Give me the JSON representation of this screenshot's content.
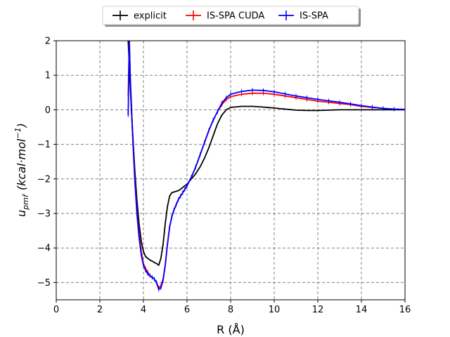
{
  "chart_data": {
    "type": "line",
    "title": "",
    "xlabel": "R (Å)",
    "ylabel": "u_pmf (kcal·mol⁻¹)",
    "ylabel_parts": {
      "main": "u",
      "sub": "pmf",
      "paren": "(kcal·mol",
      "sup": "−1",
      "close": ")"
    },
    "xlim": [
      0,
      16
    ],
    "ylim": [
      -5.5,
      2
    ],
    "xticks": [
      0,
      2,
      4,
      6,
      8,
      10,
      12,
      14,
      16
    ],
    "yticks": [
      -5,
      -4,
      -3,
      -2,
      -1,
      0,
      1,
      2
    ],
    "xtick_labels": [
      "0",
      "2",
      "4",
      "6",
      "8",
      "10",
      "12",
      "14",
      "16"
    ],
    "ytick_labels": [
      "−5",
      "−4",
      "−3",
      "−2",
      "−1",
      "0",
      "1",
      "2"
    ],
    "grid": true,
    "legend_position": "top-center",
    "series": [
      {
        "name": "explicit",
        "color": "#000000",
        "x": [
          3.3,
          3.4,
          3.5,
          3.6,
          3.7,
          3.8,
          3.9,
          4.0,
          4.1,
          4.2,
          4.3,
          4.4,
          4.5,
          4.6,
          4.7,
          4.8,
          4.9,
          5.0,
          5.1,
          5.2,
          5.3,
          5.4,
          5.5,
          5.6,
          5.7,
          5.8,
          6.0,
          6.2,
          6.4,
          6.6,
          6.8,
          7.0,
          7.2,
          7.4,
          7.6,
          7.8,
          8.0,
          8.5,
          9.0,
          9.5,
          10.0,
          10.5,
          11.0,
          11.5,
          12.0,
          12.5,
          13.0,
          13.5,
          14.0,
          14.5,
          15.0,
          15.5,
          16.0
        ],
        "y": [
          2.0,
          0.6,
          -0.6,
          -1.7,
          -2.6,
          -3.3,
          -3.8,
          -4.1,
          -4.25,
          -4.3,
          -4.35,
          -4.38,
          -4.42,
          -4.45,
          -4.5,
          -4.3,
          -3.9,
          -3.3,
          -2.8,
          -2.5,
          -2.4,
          -2.38,
          -2.36,
          -2.34,
          -2.3,
          -2.25,
          -2.15,
          -2.0,
          -1.85,
          -1.65,
          -1.4,
          -1.1,
          -0.75,
          -0.4,
          -0.15,
          0.0,
          0.07,
          0.1,
          0.1,
          0.08,
          0.05,
          0.02,
          -0.01,
          -0.02,
          -0.02,
          -0.01,
          0.0,
          0.0,
          0.0,
          0.0,
          0.0,
          0.0,
          0.0
        ]
      },
      {
        "name": "IS-SPA CUDA",
        "color": "#ff0000",
        "x": [
          3.3,
          3.35,
          3.4,
          3.5,
          3.6,
          3.7,
          3.8,
          3.9,
          4.0,
          4.1,
          4.2,
          4.3,
          4.4,
          4.5,
          4.6,
          4.7,
          4.8,
          4.9,
          5.0,
          5.1,
          5.2,
          5.3,
          5.4,
          5.5,
          5.6,
          5.7,
          5.8,
          5.9,
          6.0,
          6.2,
          6.4,
          6.6,
          6.8,
          7.0,
          7.2,
          7.4,
          7.6,
          7.8,
          8.0,
          8.5,
          9.0,
          9.5,
          10.0,
          10.5,
          11.0,
          11.5,
          12.0,
          12.5,
          13.0,
          13.5,
          14.0,
          14.5,
          15.0,
          15.5,
          16.0
        ],
        "y": [
          0.4,
          2.0,
          0.9,
          -0.6,
          -1.9,
          -2.9,
          -3.6,
          -4.1,
          -4.45,
          -4.6,
          -4.7,
          -4.8,
          -4.85,
          -4.9,
          -5.0,
          -5.15,
          -5.1,
          -4.9,
          -4.5,
          -3.9,
          -3.4,
          -3.1,
          -2.9,
          -2.75,
          -2.6,
          -2.5,
          -2.4,
          -2.3,
          -2.2,
          -1.95,
          -1.65,
          -1.3,
          -0.95,
          -0.6,
          -0.3,
          -0.05,
          0.15,
          0.3,
          0.38,
          0.45,
          0.48,
          0.48,
          0.45,
          0.4,
          0.35,
          0.3,
          0.25,
          0.22,
          0.18,
          0.15,
          0.1,
          0.07,
          0.04,
          0.02,
          0.01
        ]
      },
      {
        "name": "IS-SPA",
        "color": "#0000ff",
        "x": [
          3.3,
          3.35,
          3.4,
          3.5,
          3.6,
          3.7,
          3.8,
          3.9,
          4.0,
          4.1,
          4.2,
          4.3,
          4.4,
          4.5,
          4.6,
          4.7,
          4.8,
          4.9,
          5.0,
          5.1,
          5.2,
          5.3,
          5.4,
          5.5,
          5.6,
          5.7,
          5.8,
          5.9,
          6.0,
          6.2,
          6.4,
          6.6,
          6.8,
          7.0,
          7.2,
          7.4,
          7.6,
          7.8,
          8.0,
          8.5,
          9.0,
          9.5,
          10.0,
          10.5,
          11.0,
          11.5,
          12.0,
          12.5,
          13.0,
          13.5,
          14.0,
          14.5,
          15.0,
          15.5,
          16.0
        ],
        "y": [
          -0.15,
          2.0,
          0.8,
          -0.7,
          -2.0,
          -3.0,
          -3.7,
          -4.2,
          -4.5,
          -4.65,
          -4.75,
          -4.8,
          -4.85,
          -4.9,
          -5.0,
          -5.2,
          -5.15,
          -4.95,
          -4.5,
          -3.9,
          -3.4,
          -3.1,
          -2.9,
          -2.75,
          -2.6,
          -2.5,
          -2.4,
          -2.3,
          -2.2,
          -1.95,
          -1.65,
          -1.3,
          -0.95,
          -0.6,
          -0.3,
          -0.05,
          0.2,
          0.35,
          0.45,
          0.53,
          0.57,
          0.56,
          0.52,
          0.46,
          0.4,
          0.35,
          0.3,
          0.26,
          0.22,
          0.17,
          0.12,
          0.08,
          0.04,
          0.02,
          0.01
        ]
      }
    ]
  }
}
